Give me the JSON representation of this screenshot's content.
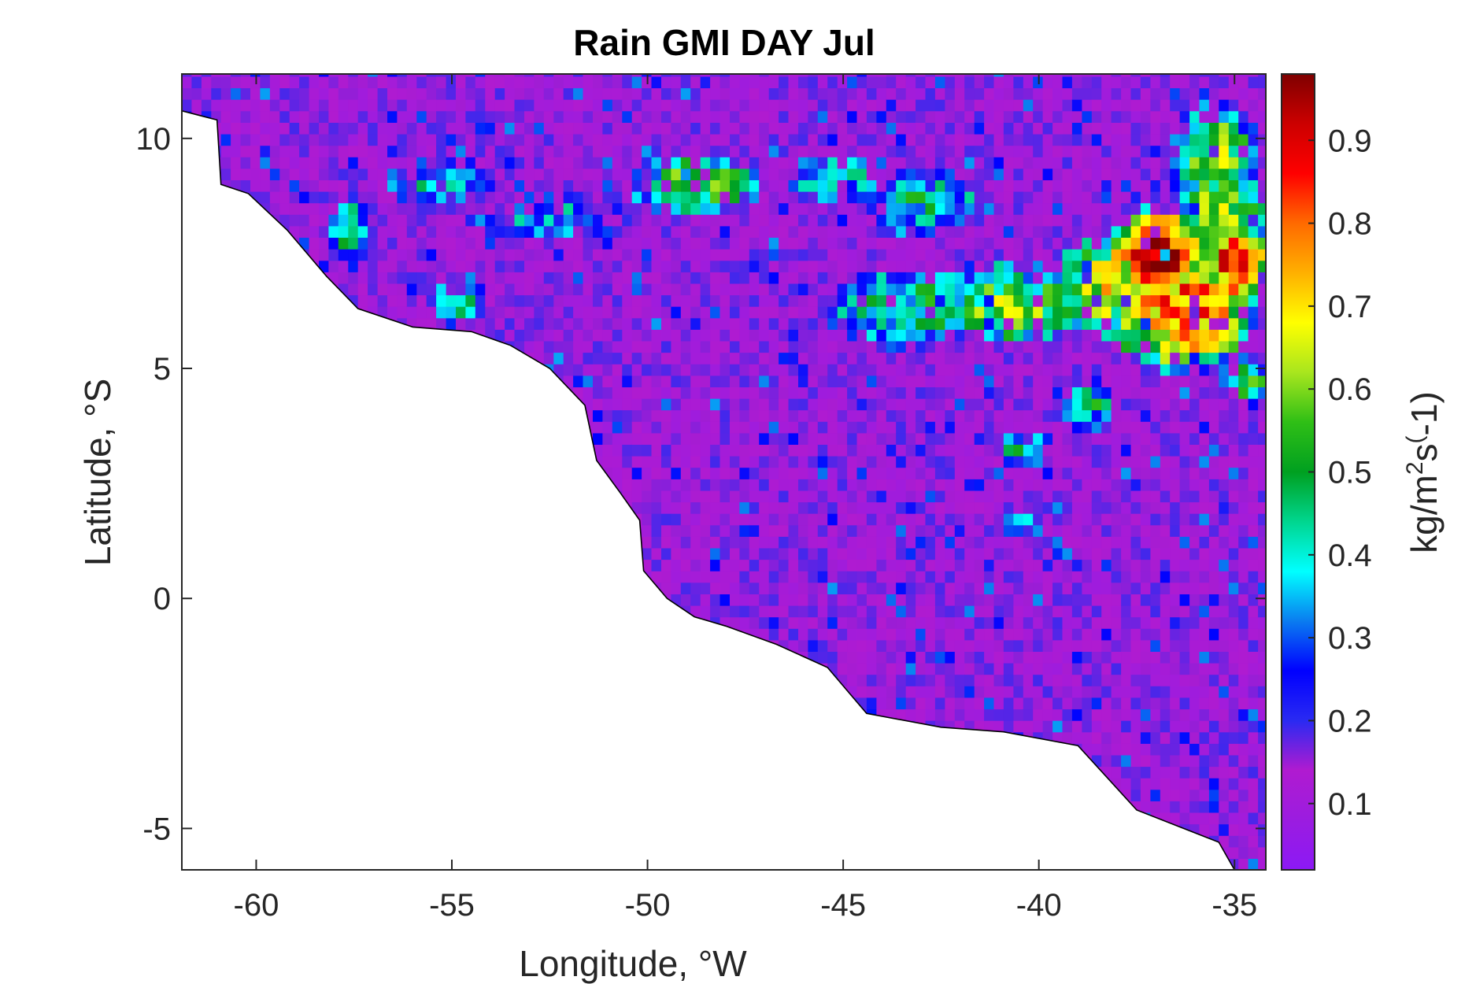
{
  "chart_data": {
    "type": "heatmap",
    "title": "Rain GMI DAY Jul",
    "xlabel": "Longitude, °W",
    "ylabel": "Latitude, °S",
    "colorbar_label": "kg/m^2s^(-1)",
    "colorbar_label_parts": {
      "base": "kg/m",
      "sup1": "2",
      "mid": "s",
      "sup2": "(",
      "tail": "-1)"
    },
    "xlim": [
      -61.9,
      -34.2
    ],
    "ylim": [
      -5.9,
      11.4
    ],
    "clim": [
      0.02,
      0.98
    ],
    "colormap": [
      "#8c19f5",
      "#9b1ce0",
      "#b01bd0",
      "#2a2af2",
      "#0000ff",
      "#0a7cf0",
      "#00ffff",
      "#00d68f",
      "#00a020",
      "#2fbf16",
      "#a8e61e",
      "#ffff00",
      "#ffb000",
      "#ff6a00",
      "#ff0000",
      "#cc0000",
      "#7f0000"
    ],
    "x_ticks": [
      -60,
      -55,
      -50,
      -45,
      -40,
      -35
    ],
    "x_tick_labels": [
      "-60",
      "-55",
      "-50",
      "-45",
      "-40",
      "-35"
    ],
    "y_ticks": [
      -5,
      0,
      5,
      10
    ],
    "y_tick_labels": [
      "-5",
      "0",
      "5",
      "10"
    ],
    "colorbar_ticks": [
      0.1,
      0.2,
      0.3,
      0.4,
      0.5,
      0.6,
      0.7,
      0.8,
      0.9
    ],
    "colorbar_tick_labels": [
      "0.1",
      "0.2",
      "0.3",
      "0.4",
      "0.5",
      "0.6",
      "0.7",
      "0.8",
      "0.9"
    ],
    "background_value": 0.14,
    "land_mask_coast": [
      [
        -61.9,
        10.6
      ],
      [
        -61.0,
        10.4
      ],
      [
        -60.9,
        9.0
      ],
      [
        -60.2,
        8.8
      ],
      [
        -59.2,
        8.0
      ],
      [
        -58.2,
        7.0
      ],
      [
        -57.4,
        6.3
      ],
      [
        -56.0,
        5.9
      ],
      [
        -54.5,
        5.8
      ],
      [
        -53.5,
        5.5
      ],
      [
        -52.5,
        5.0
      ],
      [
        -51.6,
        4.2
      ],
      [
        -51.3,
        3.0
      ],
      [
        -50.7,
        2.3
      ],
      [
        -50.2,
        1.7
      ],
      [
        -50.1,
        0.6
      ],
      [
        -49.5,
        0.0
      ],
      [
        -48.8,
        -0.4
      ],
      [
        -48.0,
        -0.6
      ],
      [
        -46.7,
        -1.0
      ],
      [
        -45.4,
        -1.5
      ],
      [
        -44.4,
        -2.5
      ],
      [
        -42.5,
        -2.8
      ],
      [
        -40.9,
        -2.9
      ],
      [
        -39.0,
        -3.2
      ],
      [
        -37.5,
        -4.6
      ],
      [
        -36.3,
        -5.0
      ],
      [
        -35.4,
        -5.3
      ],
      [
        -35.0,
        -5.9
      ]
    ],
    "rain_clusters": [
      {
        "lon": -37.0,
        "lat": 7.5,
        "rx": 1.3,
        "ry": 1.0,
        "value": 0.93
      },
      {
        "lon": -34.9,
        "lat": 7.3,
        "rx": 0.8,
        "ry": 0.9,
        "value": 0.92
      },
      {
        "lon": -36.3,
        "lat": 6.3,
        "rx": 1.9,
        "ry": 1.4,
        "value": 0.82
      },
      {
        "lon": -38.2,
        "lat": 6.8,
        "rx": 1.4,
        "ry": 1.1,
        "value": 0.66
      },
      {
        "lon": -40.7,
        "lat": 6.4,
        "rx": 1.9,
        "ry": 0.9,
        "value": 0.58
      },
      {
        "lon": -35.5,
        "lat": 9.6,
        "rx": 1.2,
        "ry": 1.3,
        "value": 0.58
      },
      {
        "lon": -35.3,
        "lat": 8.4,
        "rx": 1.2,
        "ry": 0.9,
        "value": 0.62
      },
      {
        "lon": -43.3,
        "lat": 6.3,
        "rx": 2.2,
        "ry": 0.9,
        "value": 0.46
      },
      {
        "lon": -43.0,
        "lat": 8.6,
        "rx": 1.8,
        "ry": 0.7,
        "value": 0.42
      },
      {
        "lon": -48.8,
        "lat": 9.0,
        "rx": 1.7,
        "ry": 0.7,
        "value": 0.55
      },
      {
        "lon": -45.2,
        "lat": 9.1,
        "rx": 1.2,
        "ry": 0.6,
        "value": 0.43
      },
      {
        "lon": -38.8,
        "lat": 4.2,
        "rx": 0.9,
        "ry": 0.5,
        "value": 0.45
      },
      {
        "lon": -57.6,
        "lat": 8.0,
        "rx": 0.5,
        "ry": 0.8,
        "value": 0.45
      },
      {
        "lon": -54.8,
        "lat": 6.4,
        "rx": 0.8,
        "ry": 0.5,
        "value": 0.4
      },
      {
        "lon": -40.4,
        "lat": 3.3,
        "rx": 0.7,
        "ry": 0.4,
        "value": 0.44
      },
      {
        "lon": -34.6,
        "lat": 4.7,
        "rx": 0.5,
        "ry": 0.5,
        "value": 0.6
      },
      {
        "lon": -40.6,
        "lat": 1.7,
        "rx": 0.4,
        "ry": 0.3,
        "value": 0.4
      },
      {
        "lon": -52.5,
        "lat": 8.3,
        "rx": 2.2,
        "ry": 0.5,
        "value": 0.33
      },
      {
        "lon": -55.5,
        "lat": 9.0,
        "rx": 1.5,
        "ry": 0.4,
        "value": 0.35
      }
    ]
  }
}
